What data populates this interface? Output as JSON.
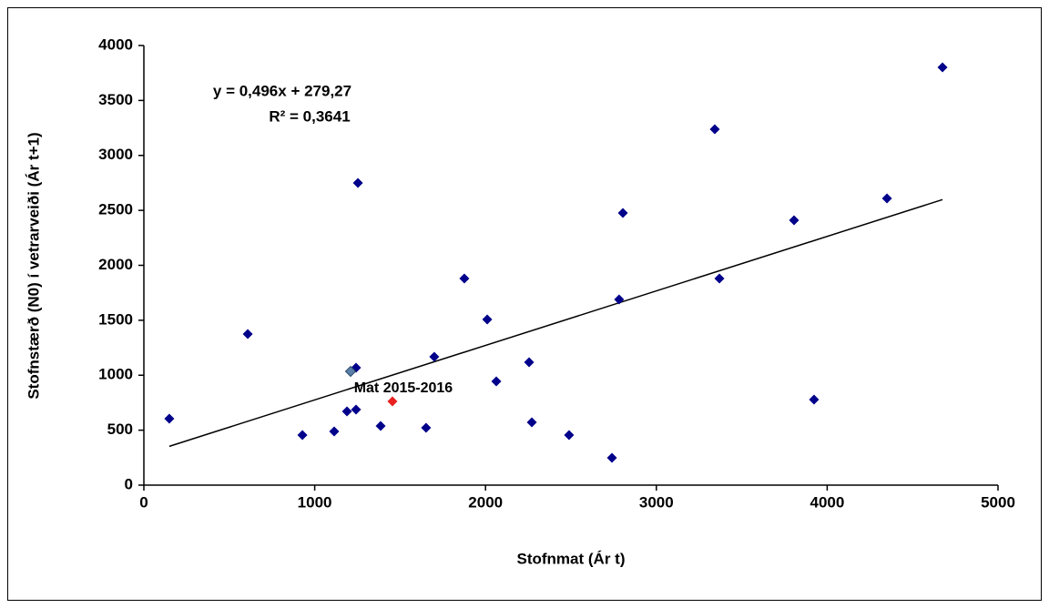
{
  "chart_data": {
    "type": "scatter",
    "x_label": "Stofnmat (Ár t)",
    "y_label": "Stofnstærð  (N0) í vetrarveiði (Ár t+1)",
    "annotations": [
      "y = 0,496x + 279,27",
      "R² = 0,3641"
    ],
    "trendline": {
      "slope": 0.496,
      "intercept": 279.27,
      "color": "#000000"
    },
    "legend": false,
    "series": [
      {
        "color": "#00008b",
        "x": [
          149,
          608,
          928,
          1114,
          1189,
          1242,
          1242,
          1253,
          1386,
          1652,
          1700,
          1876,
          2010,
          2063,
          2255,
          2271,
          2489,
          2740,
          2782,
          2804,
          3342,
          3369,
          3806,
          3923,
          4350,
          4675
        ],
        "values": [
          605,
          1375,
          455,
          489,
          671,
          1068,
          687,
          2750,
          538,
          522,
          1168,
          1880,
          1507,
          944,
          1118,
          571,
          455,
          248,
          1689,
          2476,
          3238,
          1880,
          2410,
          778,
          2609,
          3801
        ]
      },
      {
        "color": "#5a7fa8",
        "x": [
          1210
        ],
        "values": [
          1035
        ]
      },
      {
        "name": "Mat 2015-2016",
        "color": "#e8201f",
        "x": [
          1455
        ],
        "values": [
          762
        ]
      }
    ],
    "xlim": [
      0,
      5000
    ],
    "xticks": [
      0,
      1000,
      2000,
      3000,
      4000,
      5000
    ],
    "ylim": [
      0,
      4000
    ],
    "yticks": [
      0,
      500,
      1000,
      1500,
      2000,
      2500,
      3000,
      3500,
      4000
    ]
  }
}
